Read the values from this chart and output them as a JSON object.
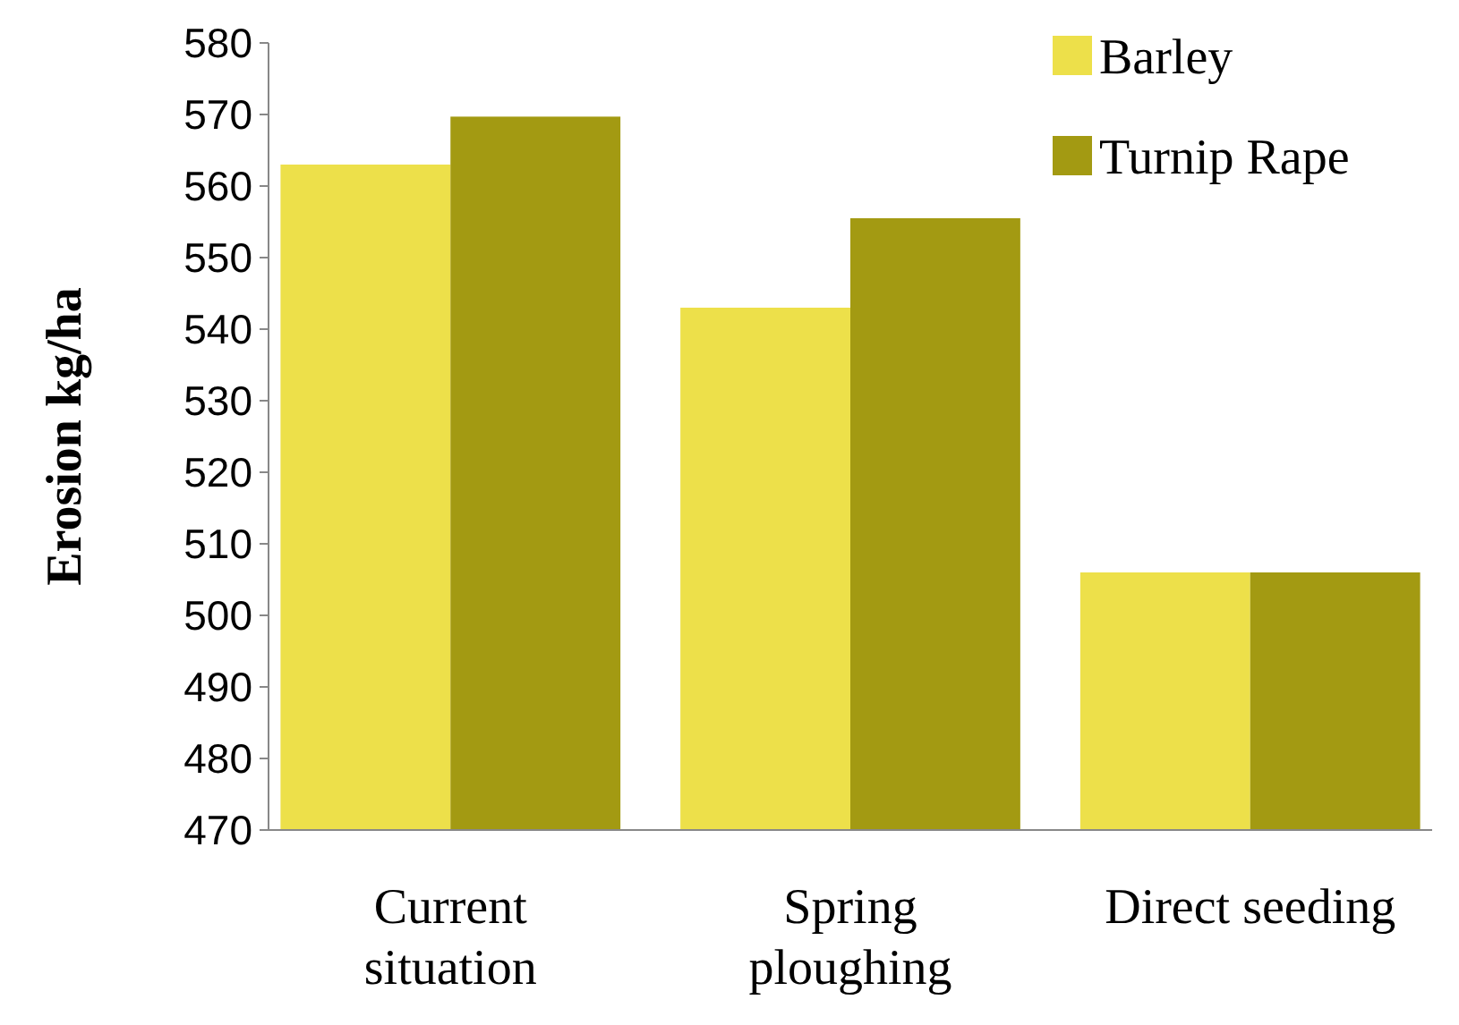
{
  "chart_data": {
    "type": "bar",
    "ylabel": "Erosion kg/ha",
    "categories": [
      "Current situation",
      "Spring ploughing",
      "Direct seeding"
    ],
    "series": [
      {
        "name": "Barley",
        "color": "#ede04a",
        "values": [
          563,
          543,
          506
        ]
      },
      {
        "name": "Turnip Rape",
        "color": "#a39a12",
        "values": [
          569.7,
          555.5,
          506
        ]
      }
    ],
    "ylim": [
      470,
      580
    ],
    "yticks": [
      470,
      480,
      490,
      500,
      510,
      520,
      530,
      540,
      550,
      560,
      570,
      580
    ],
    "grid": false,
    "legend": "top right"
  }
}
